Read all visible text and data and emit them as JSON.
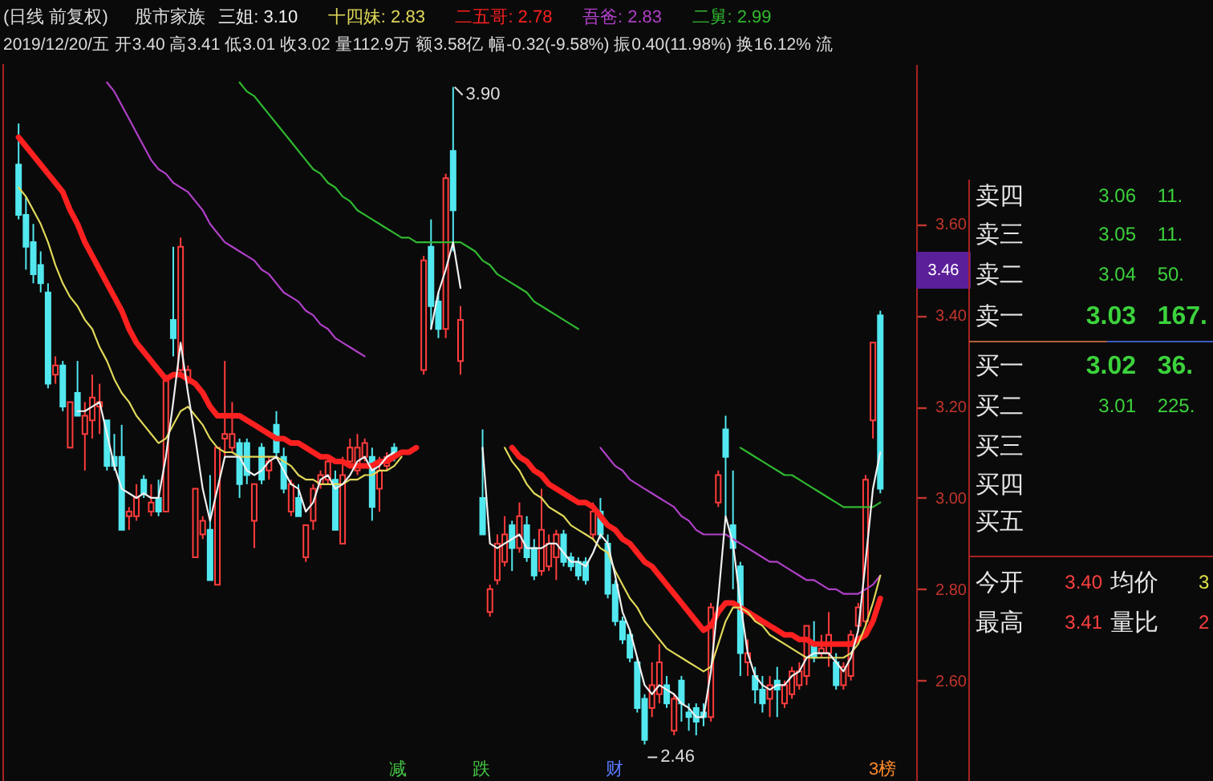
{
  "chart_data": [
    {
      "type": "candlestick",
      "title": "(日线 前复权)",
      "subtitle": "2019/12/20/五 开3.40 高3.41 低3.01 收3.02 量112.9万 额3.58亿 幅-0.32(-9.58%) 振0.40(11.98%) 换16.12% 流",
      "legend_title": "股市家族",
      "legend": "top",
      "tick_labels": "y",
      "categories": [
        null,
        null,
        null,
        null,
        null,
        null,
        null,
        null,
        null,
        null,
        null,
        null,
        null,
        null,
        null,
        null,
        null,
        null,
        null,
        null,
        null,
        null,
        null,
        null,
        null,
        null,
        null,
        null,
        null,
        null,
        null,
        null,
        null,
        null,
        null,
        null,
        null,
        null,
        null,
        null,
        null,
        null,
        null,
        null,
        null,
        null,
        null,
        null,
        null,
        null,
        null,
        null,
        null,
        null,
        null,
        null,
        null,
        null,
        null,
        null,
        null,
        null,
        null,
        null,
        null,
        null,
        null,
        null,
        null,
        null,
        null,
        null,
        null,
        null,
        null,
        null,
        null,
        null,
        null,
        null,
        null,
        null,
        null,
        null,
        null,
        null,
        null,
        null,
        null,
        null,
        null,
        null,
        null,
        null,
        null,
        null,
        null,
        null,
        null,
        null,
        null,
        null,
        null,
        null,
        null,
        null,
        null,
        null,
        null,
        null,
        null,
        null,
        null,
        null,
        null,
        null,
        null,
        null
      ],
      "ohlc": [
        [
          3.73,
          3.82,
          3.61,
          3.62
        ],
        [
          3.62,
          3.66,
          3.5,
          3.55
        ],
        [
          3.56,
          3.6,
          3.47,
          3.49
        ],
        [
          3.51,
          3.54,
          3.45,
          3.47
        ],
        [
          3.45,
          3.47,
          3.24,
          3.25
        ],
        [
          3.27,
          3.31,
          3.25,
          3.29
        ],
        [
          3.29,
          3.3,
          3.19,
          3.2
        ],
        [
          3.11,
          3.21,
          3.11,
          3.21
        ],
        [
          3.23,
          3.3,
          3.18,
          3.18
        ],
        [
          3.14,
          3.21,
          3.06,
          3.18
        ],
        [
          3.17,
          3.27,
          3.13,
          3.22
        ],
        [
          3.2,
          3.25,
          3.14,
          3.21
        ],
        [
          3.17,
          3.17,
          3.06,
          3.07
        ],
        [
          3.09,
          3.14,
          3.06,
          3.07
        ],
        [
          3.09,
          3.16,
          2.93,
          2.93
        ],
        [
          2.96,
          2.98,
          2.93,
          2.97
        ],
        [
          2.96,
          3.03,
          2.95,
          3.0
        ],
        [
          3.04,
          3.05,
          3.0,
          3.01
        ],
        [
          2.97,
          3.03,
          2.96,
          2.99
        ],
        [
          3.0,
          3.04,
          2.96,
          2.97
        ],
        [
          2.97,
          3.27,
          2.97,
          3.26
        ],
        [
          3.39,
          3.55,
          3.31,
          3.35
        ],
        [
          3.28,
          3.57,
          3.27,
          3.55
        ],
        [
          3.26,
          3.29,
          3.25,
          3.28
        ],
        [
          2.87,
          3.02,
          2.87,
          3.02
        ],
        [
          2.92,
          2.96,
          2.91,
          2.95
        ],
        [
          2.93,
          3.05,
          2.82,
          2.82
        ],
        [
          2.81,
          3.11,
          2.81,
          3.11
        ],
        [
          3.13,
          3.3,
          3.09,
          3.14
        ],
        [
          3.11,
          3.21,
          3.1,
          3.14
        ],
        [
          3.12,
          3.13,
          3.0,
          3.03
        ],
        [
          3.12,
          3.13,
          3.03,
          3.05
        ],
        [
          2.95,
          3.03,
          2.89,
          3.03
        ],
        [
          3.11,
          3.12,
          3.03,
          3.04
        ],
        [
          3.06,
          3.09,
          3.04,
          3.08
        ],
        [
          3.16,
          3.19,
          3.09,
          3.1
        ],
        [
          3.09,
          3.11,
          3.01,
          3.02
        ],
        [
          2.97,
          3.04,
          2.96,
          3.03
        ],
        [
          3.0,
          3.03,
          2.96,
          2.96
        ],
        [
          2.87,
          2.94,
          2.86,
          2.94
        ],
        [
          2.95,
          3.03,
          2.93,
          3.02
        ],
        [
          3.03,
          3.06,
          3.02,
          3.05
        ],
        [
          3.04,
          3.09,
          3.03,
          3.08
        ],
        [
          3.04,
          3.06,
          2.93,
          2.93
        ],
        [
          2.9,
          3.09,
          2.9,
          3.05
        ],
        [
          3.08,
          3.13,
          3.07,
          3.11
        ],
        [
          3.06,
          3.14,
          3.05,
          3.11
        ],
        [
          3.09,
          3.13,
          3.08,
          3.12
        ],
        [
          3.09,
          3.11,
          2.95,
          2.98
        ],
        [
          3.02,
          3.09,
          2.97,
          3.06
        ],
        [
          3.07,
          3.1,
          3.06,
          3.09
        ],
        [
          3.11,
          3.12,
          3.08,
          3.09
        ],
        null,
        null,
        null,
        [
          3.28,
          3.53,
          3.27,
          3.52
        ],
        [
          3.55,
          3.61,
          3.37,
          3.42
        ],
        [
          3.43,
          3.45,
          3.35,
          3.37
        ],
        [
          3.37,
          3.71,
          3.35,
          3.7
        ],
        [
          3.76,
          3.9,
          3.54,
          3.63
        ],
        [
          3.3,
          3.42,
          3.27,
          3.39
        ],
        null,
        null,
        [
          3.0,
          3.15,
          2.92,
          2.92
        ],
        [
          2.75,
          2.81,
          2.74,
          2.8
        ],
        [
          2.82,
          2.92,
          2.81,
          2.9
        ],
        [
          2.86,
          2.96,
          2.85,
          2.92
        ],
        [
          2.94,
          2.95,
          2.84,
          2.89
        ],
        [
          2.89,
          2.99,
          2.88,
          2.96
        ],
        [
          2.94,
          2.96,
          2.86,
          2.87
        ],
        [
          2.89,
          2.91,
          2.82,
          2.83
        ],
        [
          2.84,
          3.02,
          2.83,
          2.93
        ],
        [
          2.85,
          2.92,
          2.84,
          2.9
        ],
        [
          2.87,
          2.93,
          2.82,
          2.92
        ],
        [
          2.92,
          2.93,
          2.85,
          2.86
        ],
        [
          2.87,
          2.88,
          2.84,
          2.85
        ],
        [
          2.86,
          2.87,
          2.82,
          2.83
        ],
        [
          2.86,
          2.87,
          2.81,
          2.82
        ],
        [
          2.92,
          2.99,
          2.91,
          2.97
        ],
        [
          2.97,
          3.0,
          2.91,
          2.92
        ],
        [
          2.9,
          2.92,
          2.78,
          2.79
        ],
        [
          2.81,
          2.82,
          2.72,
          2.73
        ],
        [
          2.73,
          2.74,
          2.68,
          2.69
        ],
        [
          2.7,
          2.71,
          2.64,
          2.65
        ],
        [
          2.64,
          2.65,
          2.53,
          2.54
        ],
        [
          2.56,
          2.57,
          2.46,
          2.47
        ],
        [
          2.54,
          2.64,
          2.52,
          2.59
        ],
        [
          2.57,
          2.68,
          2.55,
          2.64
        ],
        [
          2.59,
          2.61,
          2.54,
          2.55
        ],
        [
          2.49,
          2.57,
          2.48,
          2.56
        ],
        [
          2.6,
          2.61,
          2.51,
          2.55
        ],
        [
          2.53,
          2.55,
          2.49,
          2.52
        ],
        [
          2.54,
          2.55,
          2.48,
          2.51
        ],
        [
          2.53,
          2.55,
          2.5,
          2.52
        ],
        [
          2.52,
          2.77,
          2.51,
          2.76
        ],
        [
          2.99,
          3.06,
          2.98,
          3.05
        ],
        [
          3.15,
          3.18,
          2.96,
          3.09
        ],
        [
          2.94,
          3.06,
          2.8,
          2.89
        ],
        [
          2.85,
          2.86,
          2.61,
          2.66
        ],
        [
          2.64,
          2.69,
          2.61,
          2.66
        ],
        [
          2.61,
          2.63,
          2.55,
          2.58
        ],
        [
          2.58,
          2.61,
          2.53,
          2.55
        ],
        [
          2.56,
          2.61,
          2.52,
          2.59
        ],
        [
          2.6,
          2.63,
          2.52,
          2.58
        ],
        [
          2.55,
          2.6,
          2.54,
          2.59
        ],
        [
          2.57,
          2.63,
          2.56,
          2.62
        ],
        [
          2.59,
          2.64,
          2.58,
          2.62
        ],
        [
          2.61,
          2.72,
          2.59,
          2.72
        ],
        [
          2.68,
          2.73,
          2.64,
          2.65
        ],
        [
          2.66,
          2.7,
          2.65,
          2.67
        ],
        [
          2.66,
          2.75,
          2.63,
          2.7
        ],
        [
          2.64,
          2.66,
          2.58,
          2.59
        ],
        [
          2.59,
          2.64,
          2.58,
          2.63
        ],
        [
          2.61,
          2.71,
          2.6,
          2.7
        ],
        [
          2.72,
          2.77,
          2.71,
          2.76
        ],
        [
          2.73,
          3.05,
          2.72,
          3.04
        ],
        [
          3.17,
          3.34,
          3.13,
          3.34
        ],
        [
          3.4,
          3.41,
          3.01,
          3.02
        ]
      ],
      "series": [
        {
          "name": "三姐: 3.10",
          "type": "line",
          "color": "#f0f0f0",
          "values": [
            null,
            null,
            null,
            null,
            null,
            null,
            null,
            null,
            3.19,
            3.19,
            3.2,
            3.21,
            3.14,
            3.07,
            3.02,
            3.01,
            3.0,
            3.01,
            3.0,
            3.0,
            3.09,
            3.21,
            3.34,
            3.23,
            3.13,
            3.02,
            2.95,
            3.02,
            3.09,
            3.09,
            3.09,
            3.06,
            3.05,
            3.06,
            3.08,
            3.09,
            3.06,
            3.03,
            3.02,
            2.97,
            2.99,
            3.04,
            3.05,
            3.02,
            3.03,
            3.05,
            3.08,
            3.09,
            3.06,
            3.07,
            3.09,
            3.1,
            null,
            null,
            null,
            null,
            3.37,
            3.45,
            3.5,
            3.56,
            3.46,
            null,
            null,
            3.11,
            2.9,
            2.89,
            2.9,
            2.91,
            2.92,
            2.89,
            2.89,
            2.89,
            2.9,
            2.9,
            2.88,
            2.86,
            2.86,
            2.85,
            2.88,
            2.92,
            2.9,
            2.83,
            2.75,
            2.71,
            2.65,
            2.59,
            2.57,
            2.59,
            2.58,
            2.57,
            2.55,
            2.54,
            2.52,
            2.52,
            2.62,
            2.78,
            2.96,
            2.9,
            2.77,
            2.66,
            2.61,
            2.59,
            2.58,
            2.59,
            2.59,
            2.61,
            2.62,
            2.65,
            2.66,
            2.66,
            2.66,
            2.64,
            2.62,
            2.65,
            2.71,
            2.86,
            3.02,
            3.1
          ]
        },
        {
          "name": "十四妹: 2.83",
          "type": "line",
          "color": "#e0d85a",
          "values": [
            3.68,
            3.66,
            3.63,
            3.6,
            3.56,
            3.51,
            3.47,
            3.44,
            3.42,
            3.39,
            3.37,
            3.33,
            3.3,
            3.26,
            3.23,
            3.21,
            3.18,
            3.16,
            3.14,
            3.12,
            3.13,
            3.16,
            3.19,
            3.2,
            3.18,
            3.16,
            3.13,
            3.11,
            3.1,
            3.1,
            3.09,
            3.09,
            3.09,
            3.09,
            3.09,
            3.09,
            3.08,
            3.07,
            3.05,
            3.04,
            3.04,
            3.03,
            3.03,
            3.03,
            3.03,
            3.04,
            3.04,
            3.05,
            3.05,
            3.06,
            3.06,
            3.07,
            3.09,
            null,
            null,
            null,
            null,
            null,
            null,
            null,
            null,
            null,
            null,
            null,
            null,
            null,
            3.11,
            3.08,
            3.06,
            3.03,
            3.01,
            3.0,
            2.98,
            2.97,
            2.96,
            2.94,
            2.93,
            2.92,
            2.91,
            2.89,
            2.88,
            2.84,
            2.81,
            2.78,
            2.76,
            2.73,
            2.71,
            2.69,
            2.67,
            2.66,
            2.65,
            2.64,
            2.63,
            2.62,
            2.63,
            2.68,
            2.73,
            2.76,
            2.76,
            2.75,
            2.73,
            2.72,
            2.7,
            2.69,
            2.68,
            2.67,
            2.66,
            2.65,
            2.65,
            2.65,
            2.65,
            2.65,
            2.65,
            2.66,
            2.68,
            2.72,
            2.77,
            2.83
          ]
        },
        {
          "name": "二五哥: 2.78",
          "type": "line",
          "color": "#ff2020",
          "values": [
            3.79,
            3.77,
            3.75,
            3.73,
            3.71,
            3.69,
            3.67,
            3.63,
            3.6,
            3.56,
            3.53,
            3.5,
            3.47,
            3.44,
            3.41,
            3.37,
            3.34,
            3.32,
            3.3,
            3.28,
            3.26,
            3.27,
            3.27,
            3.26,
            3.25,
            3.23,
            3.2,
            3.18,
            3.18,
            3.18,
            3.18,
            3.17,
            3.16,
            3.15,
            3.14,
            3.13,
            3.13,
            3.12,
            3.12,
            3.11,
            3.1,
            3.09,
            3.09,
            3.08,
            3.08,
            3.07,
            3.07,
            3.07,
            3.07,
            3.08,
            3.08,
            3.09,
            3.1,
            3.1,
            3.11,
            null,
            null,
            null,
            null,
            null,
            null,
            null,
            null,
            null,
            null,
            null,
            null,
            3.11,
            3.09,
            3.08,
            3.06,
            3.05,
            3.03,
            3.02,
            3.01,
            3.0,
            2.99,
            2.99,
            2.98,
            2.96,
            2.94,
            2.93,
            2.91,
            2.9,
            2.88,
            2.86,
            2.85,
            2.83,
            2.81,
            2.79,
            2.77,
            2.75,
            2.73,
            2.71,
            2.72,
            2.75,
            2.77,
            2.77,
            2.76,
            2.75,
            2.74,
            2.73,
            2.72,
            2.71,
            2.7,
            2.7,
            2.69,
            2.69,
            2.68,
            2.68,
            2.68,
            2.68,
            2.68,
            2.68,
            2.69,
            2.7,
            2.73,
            2.78
          ]
        },
        {
          "name": "吾爸: 2.83",
          "type": "line",
          "color": "#b040c8",
          "values": [
            null,
            null,
            null,
            null,
            null,
            null,
            null,
            null,
            null,
            null,
            null,
            null,
            3.91,
            3.89,
            3.86,
            3.83,
            3.8,
            3.77,
            3.74,
            3.72,
            3.71,
            3.69,
            3.68,
            3.67,
            3.65,
            3.63,
            3.6,
            3.58,
            3.56,
            3.55,
            3.54,
            3.53,
            3.52,
            3.5,
            3.49,
            3.47,
            3.45,
            3.44,
            3.43,
            3.41,
            3.4,
            3.38,
            3.37,
            3.35,
            3.34,
            3.33,
            3.32,
            3.31,
            null,
            null,
            null,
            null,
            null,
            null,
            null,
            null,
            null,
            null,
            null,
            null,
            null,
            null,
            null,
            null,
            null,
            null,
            null,
            null,
            null,
            null,
            null,
            null,
            null,
            null,
            null,
            null,
            null,
            null,
            null,
            3.11,
            3.09,
            3.07,
            3.06,
            3.04,
            3.03,
            3.02,
            3.01,
            3.0,
            2.99,
            2.98,
            2.96,
            2.95,
            2.93,
            2.92,
            2.92,
            2.92,
            2.92,
            2.91,
            2.9,
            2.89,
            2.88,
            2.87,
            2.86,
            2.86,
            2.85,
            2.84,
            2.83,
            2.82,
            2.82,
            2.81,
            2.8,
            2.8,
            2.79,
            2.79,
            2.79,
            2.8,
            2.81,
            2.83
          ]
        },
        {
          "name": "二舅: 2.99",
          "type": "line",
          "color": "#30b830",
          "values": [
            null,
            null,
            null,
            null,
            null,
            null,
            null,
            null,
            null,
            null,
            null,
            null,
            null,
            null,
            null,
            null,
            null,
            null,
            null,
            null,
            null,
            null,
            null,
            null,
            null,
            null,
            null,
            null,
            null,
            null,
            3.91,
            3.89,
            3.88,
            3.86,
            3.84,
            3.82,
            3.8,
            3.78,
            3.76,
            3.74,
            3.72,
            3.71,
            3.69,
            3.68,
            3.66,
            3.65,
            3.63,
            3.62,
            3.61,
            3.6,
            3.59,
            3.58,
            3.57,
            3.57,
            3.56,
            3.56,
            3.56,
            3.56,
            3.56,
            3.56,
            3.56,
            3.55,
            3.54,
            3.52,
            3.51,
            3.49,
            3.48,
            3.47,
            3.46,
            3.45,
            3.43,
            3.42,
            3.41,
            3.4,
            3.39,
            3.38,
            3.37,
            null,
            null,
            null,
            null,
            null,
            null,
            null,
            null,
            null,
            null,
            null,
            null,
            null,
            null,
            null,
            null,
            null,
            null,
            null,
            null,
            null,
            3.11,
            3.1,
            3.09,
            3.08,
            3.07,
            3.06,
            3.05,
            3.05,
            3.04,
            3.03,
            3.02,
            3.01,
            3.0,
            2.99,
            2.98,
            2.98,
            2.98,
            2.98,
            2.98,
            2.99
          ]
        }
      ],
      "ylim": [
        2.38,
        3.95
      ],
      "yticks": [
        {
          "value": 2.6,
          "label": "2.60"
        },
        {
          "value": 2.8,
          "label": "2.80"
        },
        {
          "value": 3.0,
          "label": "3.00"
        },
        {
          "value": 3.2,
          "label": "3.20"
        },
        {
          "value": 3.4,
          "label": "3.40"
        },
        {
          "value": 3.6,
          "label": "3.60"
        }
      ],
      "annotations": [
        "3.90",
        "2.46",
        "3.46",
        "减",
        "跌",
        "财",
        "3榜"
      ]
    },
    {
      "type": "other",
      "annotations": [
        "卖四",
        "3.06 11.",
        "卖三",
        "3.05 11.",
        "卖二",
        "3.04 50.",
        "卖一",
        "3.03 167.",
        "买一",
        "3.02 36.",
        "买二",
        "3.01 225.",
        "买三",
        "买四",
        "买五",
        "今开",
        "3.40",
        "均价",
        "3",
        "最高",
        "3.41",
        "量比",
        "2"
      ]
    }
  ]
}
